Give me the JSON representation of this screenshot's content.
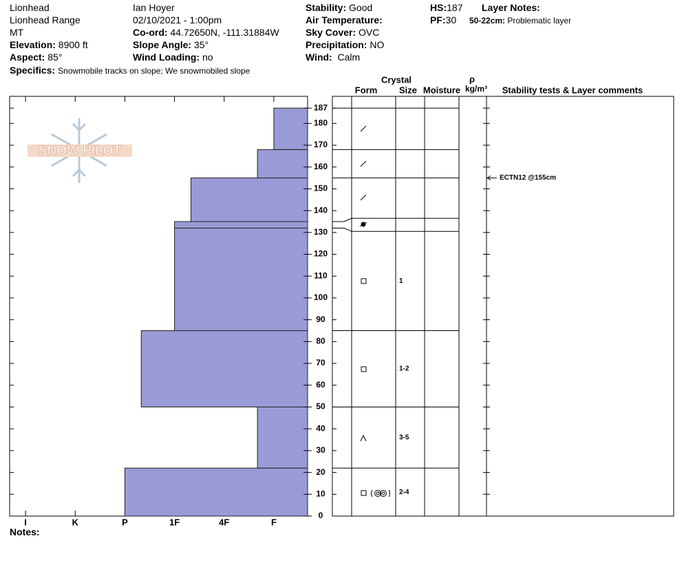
{
  "header": {
    "site": "Lionhead",
    "range": "Lionhead Range",
    "state": "MT",
    "elevation": {
      "label": "Elevation:",
      "value": "8900 ft"
    },
    "aspect": {
      "label": "Aspect:",
      "value": "85°"
    },
    "observer": "Ian Hoyer",
    "date": "02/10/2021 - 1:00pm",
    "coord": {
      "label": "Co-ord:",
      "value": "44.72650N, -111.31884W"
    },
    "slope": {
      "label": "Slope Angle:",
      "value": "35°"
    },
    "wind_loading": {
      "label": "Wind Loading:",
      "value": "no"
    },
    "stability": {
      "label": "Stability:",
      "value": "Good"
    },
    "air_temp": {
      "label": "Air Temperature:"
    },
    "sky": {
      "label": "Sky Cover:",
      "value": "OVC"
    },
    "precip": {
      "label": "Precipitation:",
      "value": "NO"
    },
    "wind": {
      "label": "Wind:",
      "value": "Calm"
    },
    "hs": {
      "label": "HS:",
      "value": 187
    },
    "pf": {
      "label": "PF:",
      "value": 30
    },
    "layer_notes": {
      "label": "Layer Notes:",
      "items": [
        {
          "range": "50-22cm:",
          "text": "Problematic layer"
        }
      ]
    },
    "specifics": {
      "label": "Specifics:",
      "value": "Snowmobile tracks on slope; We snowmobiled slope"
    },
    "notes": {
      "label": "Notes:"
    },
    "logo": "SNOW PILOT"
  },
  "chart_data": {
    "type": "snow-profile",
    "column_headers": {
      "crystal": "Crystal",
      "form": "Form",
      "size": "Size",
      "moisture": "Moisture",
      "density_symbol": "ρ",
      "density_unit": "kg/m³",
      "comments": "Stability tests & Layer comments"
    },
    "color": "#9a9ad6",
    "xlim": [
      0.68,
      6.68
    ],
    "xticks": [
      {
        "value": 1,
        "label": "I"
      },
      {
        "value": 2,
        "label": "K"
      },
      {
        "value": 3,
        "label": "P"
      },
      {
        "value": 4,
        "label": "1F"
      },
      {
        "value": 5,
        "label": "4F"
      },
      {
        "value": 6,
        "label": "F"
      }
    ],
    "ylim": [
      0,
      192.4
    ],
    "yticks": [
      0,
      10,
      20,
      30,
      40,
      50,
      60,
      70,
      80,
      90,
      100,
      110,
      120,
      130,
      140,
      150,
      160,
      170,
      180,
      187
    ],
    "layers": [
      {
        "bottom": 0,
        "top": 22,
        "hardness": 3,
        "size": "2-4"
      },
      {
        "bottom": 22,
        "top": 50,
        "hardness": 5.67,
        "size": "3-5"
      },
      {
        "bottom": 50,
        "top": 85,
        "hardness": 3.33,
        "size": "1-2"
      },
      {
        "bottom": 85,
        "top": 132,
        "hardness": 4,
        "size": "1"
      },
      {
        "bottom": 132,
        "top": 135,
        "hardness": 4
      },
      {
        "bottom": 135,
        "top": 155,
        "hardness": 4.33
      },
      {
        "bottom": 155,
        "top": 168,
        "hardness": 5.67
      },
      {
        "bottom": 168,
        "top": 187,
        "hardness": 6
      }
    ],
    "stability_tests": [
      {
        "label": "ECTN12 @155cm",
        "height": 155
      }
    ]
  }
}
